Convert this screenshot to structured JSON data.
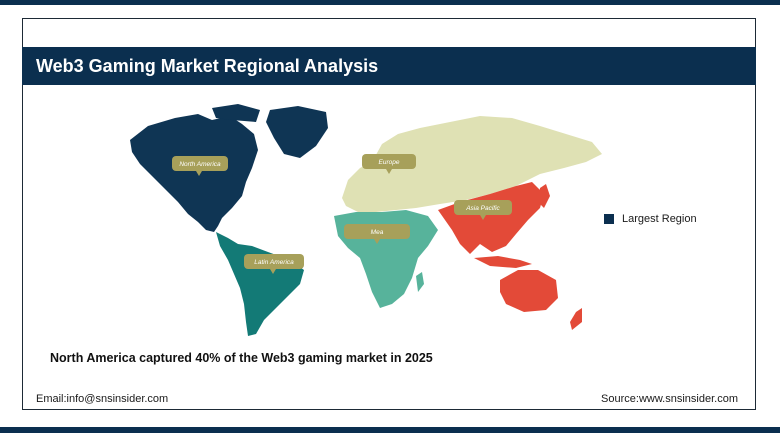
{
  "header": {
    "title": "Web3 Gaming Market Regional Analysis"
  },
  "map": {
    "regions": [
      {
        "id": "north-america",
        "label": "North America",
        "color": "#0f3554",
        "largest": true
      },
      {
        "id": "latin-america",
        "label": "Latin America",
        "color": "#137a76",
        "largest": false
      },
      {
        "id": "europe",
        "label": "Europe",
        "color": "#dfe1b4",
        "largest": false
      },
      {
        "id": "mea",
        "label": "Mea",
        "color": "#57b39b",
        "largest": false
      },
      {
        "id": "asia-pacific",
        "label": "Asia Pacific",
        "color": "#e34a38",
        "largest": false
      }
    ],
    "callout_color": "#a7a05a"
  },
  "legend": {
    "label": "Largest Region",
    "color": "#0b2f4f"
  },
  "caption": "North America captured 40% of the Web3 gaming market in 2025",
  "footer": {
    "email": "Email:info@snsinsider.com",
    "source": "Source:www.snsinsider.com"
  }
}
